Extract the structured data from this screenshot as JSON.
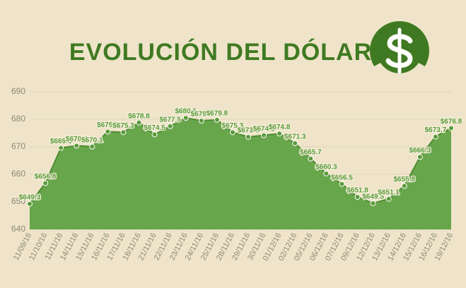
{
  "chart_data": {
    "type": "area",
    "title": "EVOLUCIÓN DEL DÓLAR",
    "categories": [
      "11/09/16",
      "11/10/16",
      "11/11/16",
      "14/11/16",
      "15/11/16",
      "16/11/16",
      "17/11/16",
      "18/11/16",
      "21/11/16",
      "22/11/16",
      "23/11/16",
      "24/11/16",
      "25/11/16",
      "28/11/16",
      "29/11/16",
      "30/11/16",
      "01/12/16",
      "02/12/16",
      "05/12/16",
      "06/12/16",
      "07/12/16",
      "09/12/16",
      "12/12/16",
      "13/12/16",
      "14/12/16",
      "15/12/16",
      "16/12/16",
      "19/12/16"
    ],
    "values": [
      649.3,
      656.8,
      669.6,
      670.4,
      670.1,
      675.5,
      675.3,
      678.8,
      674.5,
      677.5,
      680.5,
      679.5,
      679.8,
      675.3,
      673.6,
      674.2,
      674.8,
      671.3,
      665.7,
      660.3,
      656.5,
      651.8,
      649.5,
      651.1,
      655.8,
      666.3,
      673.7,
      676.8
    ],
    "value_labels": [
      "$649.3",
      "$656.8",
      "$669.6",
      "$670.4",
      "$670.1",
      "$675.5",
      "$675.3",
      "$678.8",
      "$674.5",
      "$677.5",
      "$680.5",
      "$679.5",
      "$679.8",
      "$675.3",
      "$673.6",
      "$674.2",
      "$674.8",
      "$671.3",
      "$665.7",
      "$660.3",
      "$656.5",
      "$651.8",
      "$649.5",
      "$651.1",
      "$655.8",
      "$666.3",
      "$673.7",
      "$676.8"
    ],
    "color": "#68a64c",
    "ylim": [
      640,
      690
    ],
    "yticks": [
      640,
      650,
      660,
      670,
      680,
      690
    ],
    "grid": true
  }
}
